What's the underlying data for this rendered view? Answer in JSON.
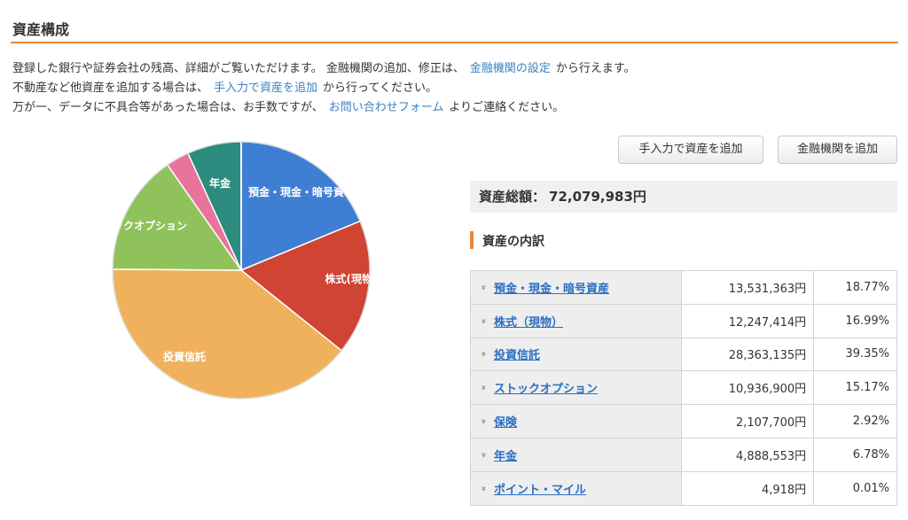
{
  "page": {
    "title": "資産構成"
  },
  "intro": {
    "line1": {
      "pre": "登録した銀行や証券会社の残高、詳細がご覧いただけます。 金融機関の追加、修正は、",
      "link": "金融機関の設定",
      "post": "から行えます。"
    },
    "line2": {
      "pre": "不動産など他資産を追加する場合は、",
      "link": "手入力で資産を追加",
      "post": "から行ってください。"
    },
    "line3": {
      "pre": "万が一、データに不具合等があった場合は、お手数ですが、",
      "link": "お問い合わせフォーム",
      "post": "よりご連絡ください。"
    }
  },
  "buttons": {
    "manual_add": "手入力で資産を追加",
    "institution_add": "金融機関を追加"
  },
  "total": {
    "label": "資産総額：",
    "value": "72,079,983円"
  },
  "breakdown": {
    "title": "資産の内訳",
    "rows": [
      {
        "name": "預金・現金・暗号資産",
        "amount": "13,531,363円",
        "percent": "18.77%"
      },
      {
        "name": "株式（現物）",
        "amount": "12,247,414円",
        "percent": "16.99%"
      },
      {
        "name": "投資信託",
        "amount": "28,363,135円",
        "percent": "39.35%"
      },
      {
        "name": "ストックオプション",
        "amount": "10,936,900円",
        "percent": "15.17%"
      },
      {
        "name": "保険",
        "amount": "2,107,700円",
        "percent": "2.92%"
      },
      {
        "name": "年金",
        "amount": "4,888,553円",
        "percent": "6.78%"
      },
      {
        "name": "ポイント・マイル",
        "amount": "4,918円",
        "percent": "0.01%"
      }
    ]
  },
  "chart_data": {
    "type": "pie",
    "labels": [
      "預金・現金・暗号資産",
      "株式(現物)",
      "投資信託",
      "ストックオプション",
      "保険",
      "年金",
      "ポイント・マイル"
    ],
    "values": [
      18.77,
      16.99,
      39.35,
      15.17,
      2.92,
      6.78,
      0.01
    ],
    "colors": [
      "#3f7fd3",
      "#cf4433",
      "#f0b15c",
      "#8fc25a",
      "#e8739b",
      "#2e8b80",
      "#9a9a9a"
    ],
    "shown_labels": [
      "預金・現金・暗号資",
      "株式(現物)",
      "投資信託",
      "ックオプション",
      "",
      "年金",
      ""
    ]
  }
}
